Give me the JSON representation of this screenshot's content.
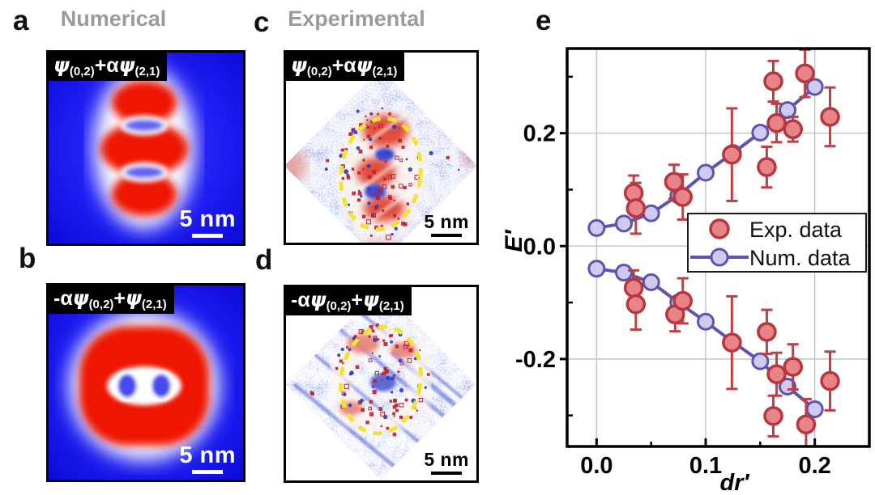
{
  "figure": {
    "panel_labels": {
      "a": "a",
      "b": "b",
      "c": "c",
      "d": "d",
      "e": "e"
    },
    "headings": {
      "numerical": "Numerical",
      "experimental": "Experimental"
    },
    "panels": {
      "a": {
        "formula": {
          "t0": "",
          "t1": "ψ",
          "sub1": "(0,2)",
          "t2": "+α",
          "t3": "ψ",
          "sub2": "(2,1)"
        },
        "scalebar_label": "5 nm"
      },
      "b": {
        "formula": {
          "t0": "-α",
          "t1": "ψ",
          "sub1": "(0,2)",
          "t2": "+",
          "t3": "ψ",
          "sub2": "(2,1)"
        },
        "scalebar_label": "5 nm"
      },
      "c": {
        "formula": {
          "t0": "",
          "t1": "ψ",
          "sub1": "(0,2)",
          "t2": "+α",
          "t3": "ψ",
          "sub2": "(2,1)"
        },
        "scalebar_label": "5 nm"
      },
      "d": {
        "formula": {
          "t0": "-α",
          "t1": "ψ",
          "sub1": "(0,2)",
          "t2": "+",
          "t3": "ψ",
          "sub2": "(2,1)"
        },
        "scalebar_label": "5 nm"
      }
    }
  },
  "colors": {
    "exp_marker_fill": "#e9838a",
    "exp_marker_stroke": "#b5383f",
    "exp_errorbar": "#c03e46",
    "num_line": "#5b54b0",
    "num_marker_fill": "#cfcaee",
    "heading_gray": "#9b9b9b",
    "grid": "#c5c5c5",
    "axis": "#000000",
    "map_blue": "#1212ee",
    "map_red": "#ee1500",
    "ellipse_yellow": "#f3e335"
  },
  "chart_data": {
    "type": "scatter",
    "title": "",
    "xlabel": "dr′",
    "ylabel": "E′",
    "xlim": [
      -0.027,
      0.25
    ],
    "ylim": [
      -0.355,
      0.35
    ],
    "grid": true,
    "x_ticks": [
      {
        "v": 0.0,
        "label": "0.0"
      },
      {
        "v": 0.1,
        "label": "0.1"
      },
      {
        "v": 0.2,
        "label": "0.2"
      }
    ],
    "x_minor_ticks": [
      0.05,
      0.15
    ],
    "y_ticks": [
      {
        "v": 0.2,
        "label": "0.2"
      },
      {
        "v": 0.0,
        "label": "0.0"
      },
      {
        "v": -0.2,
        "label": "-0.2"
      }
    ],
    "y_minor_ticks": [
      0.3,
      0.1,
      -0.1,
      -0.3
    ],
    "legend": {
      "position": "inside-bottom-right",
      "items": [
        {
          "label": "Exp. data",
          "series": "exp"
        },
        {
          "label": "Num. data",
          "series": "num"
        }
      ]
    },
    "series": [
      {
        "name": "Num. data",
        "type": "line+marker",
        "line_color": "#5b54b0",
        "marker_fill": "#cfcaee",
        "x": [
          0.0,
          0.025,
          0.05,
          0.075,
          0.1,
          0.125,
          0.15,
          0.175,
          0.2
        ],
        "upper_y": [
          0.032,
          0.04,
          0.058,
          0.09,
          0.13,
          0.165,
          0.201,
          0.241,
          0.282
        ],
        "lower_y": [
          -0.04,
          -0.047,
          -0.064,
          -0.1,
          -0.134,
          -0.17,
          -0.204,
          -0.249,
          -0.289
        ]
      },
      {
        "name": "Exp. data",
        "type": "scatter+errorbar",
        "marker_fill": "#e9838a",
        "marker_stroke": "#b5383f",
        "errorbar_color": "#c03e46",
        "upper": [
          {
            "x": 0.034,
            "y": 0.094,
            "e": 0.031
          },
          {
            "x": 0.036,
            "y": 0.067,
            "e": 0.045
          },
          {
            "x": 0.071,
            "y": 0.114,
            "e": 0.03
          },
          {
            "x": 0.079,
            "y": 0.087,
            "e": 0.04
          },
          {
            "x": 0.124,
            "y": 0.162,
            "e": 0.082
          },
          {
            "x": 0.156,
            "y": 0.14,
            "e": 0.036
          },
          {
            "x": 0.162,
            "y": 0.292,
            "e": 0.036
          },
          {
            "x": 0.165,
            "y": 0.218,
            "e": 0.034
          },
          {
            "x": 0.18,
            "y": 0.207,
            "e": 0.022
          },
          {
            "x": 0.191,
            "y": 0.306,
            "e": 0.042
          },
          {
            "x": 0.214,
            "y": 0.229,
            "e": 0.052
          }
        ],
        "lower": [
          {
            "x": 0.034,
            "y": -0.074,
            "e": 0.031
          },
          {
            "x": 0.036,
            "y": -0.103,
            "e": 0.045
          },
          {
            "x": 0.072,
            "y": -0.121,
            "e": 0.03
          },
          {
            "x": 0.079,
            "y": -0.097,
            "e": 0.04
          },
          {
            "x": 0.124,
            "y": -0.171,
            "e": 0.082
          },
          {
            "x": 0.156,
            "y": -0.152,
            "e": 0.039
          },
          {
            "x": 0.162,
            "y": -0.301,
            "e": 0.036
          },
          {
            "x": 0.165,
            "y": -0.227,
            "e": 0.038
          },
          {
            "x": 0.18,
            "y": -0.214,
            "e": 0.04
          },
          {
            "x": 0.192,
            "y": -0.316,
            "e": 0.045
          },
          {
            "x": 0.214,
            "y": -0.239,
            "e": 0.052
          }
        ]
      }
    ]
  }
}
